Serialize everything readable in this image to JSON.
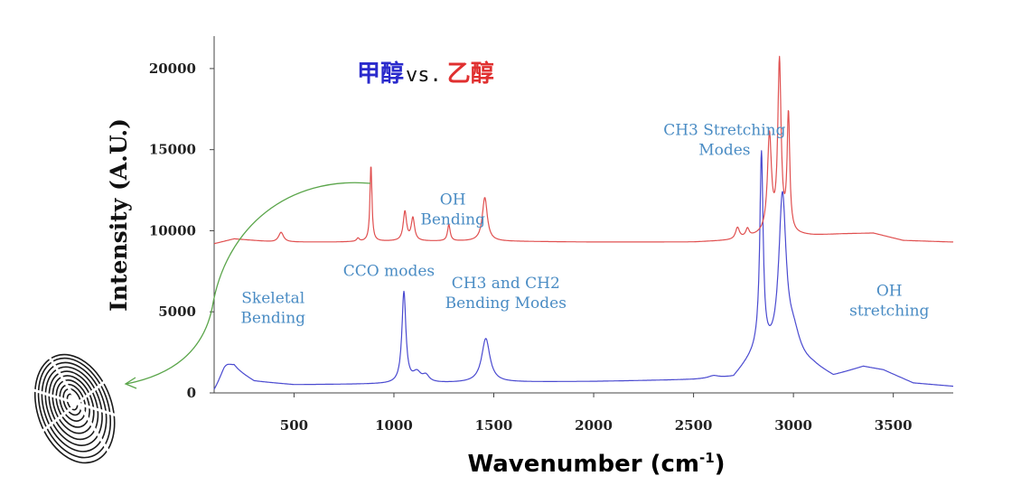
{
  "chart_data": {
    "type": "line",
    "title": "",
    "ylabel": "Intensity (A.U.)",
    "xlabel": {
      "text": "Wavenumber (cm",
      "sup": "-1",
      "close": ")"
    },
    "xlim": [
      100,
      3800
    ],
    "ylim": [
      0,
      22000
    ],
    "xticks": [
      500,
      1000,
      1500,
      2000,
      2500,
      3000,
      3500
    ],
    "yticks": [
      0,
      5000,
      10000,
      15000,
      20000
    ],
    "legend": [
      {
        "text": "甲醇",
        "color": "#2a2acc"
      },
      {
        "text": "vs.",
        "color": "#111111"
      },
      {
        "text": "乙醇",
        "color": "#e03030"
      }
    ],
    "series": [
      {
        "name": "甲醇",
        "color": "#4a4ad0",
        "baseline": [
          [
            100,
            0
          ],
          [
            150,
            900
          ],
          [
            200,
            1400
          ],
          [
            300,
            700
          ],
          [
            500,
            500
          ],
          [
            1000,
            550
          ],
          [
            1500,
            650
          ],
          [
            2000,
            700
          ],
          [
            2500,
            800
          ],
          [
            2700,
            900
          ],
          [
            2820,
            2500
          ],
          [
            3100,
            1600
          ],
          [
            3200,
            1000
          ],
          [
            3350,
            1600
          ],
          [
            3450,
            1400
          ],
          [
            3600,
            600
          ],
          [
            3800,
            400
          ]
        ],
        "peaks": [
          {
            "x": 160,
            "h": 700,
            "w": 40
          },
          {
            "x": 1050,
            "h": 5600,
            "w": 12
          },
          {
            "x": 1115,
            "h": 600,
            "w": 25
          },
          {
            "x": 1160,
            "h": 400,
            "w": 20
          },
          {
            "x": 1460,
            "h": 2700,
            "w": 25
          },
          {
            "x": 2600,
            "h": 150,
            "w": 30
          },
          {
            "x": 2840,
            "h": 12000,
            "w": 10
          },
          {
            "x": 2945,
            "h": 9700,
            "w": 22
          },
          {
            "x": 3000,
            "h": 1500,
            "w": 40
          }
        ]
      },
      {
        "name": "乙醇",
        "color": "#e05050",
        "baseline": [
          [
            100,
            9200
          ],
          [
            200,
            9500
          ],
          [
            400,
            9300
          ],
          [
            700,
            9300
          ],
          [
            1000,
            9350
          ],
          [
            1500,
            9350
          ],
          [
            2000,
            9300
          ],
          [
            2500,
            9300
          ],
          [
            2700,
            9400
          ],
          [
            2850,
            9700
          ],
          [
            3100,
            9700
          ],
          [
            3250,
            9800
          ],
          [
            3400,
            9850
          ],
          [
            3550,
            9400
          ],
          [
            3800,
            9300
          ]
        ],
        "peaks": [
          {
            "x": 435,
            "h": 600,
            "w": 15
          },
          {
            "x": 820,
            "h": 200,
            "w": 8
          },
          {
            "x": 885,
            "h": 4700,
            "w": 6
          },
          {
            "x": 1055,
            "h": 1800,
            "w": 10
          },
          {
            "x": 1095,
            "h": 1400,
            "w": 10
          },
          {
            "x": 1275,
            "h": 1000,
            "w": 8
          },
          {
            "x": 1455,
            "h": 2700,
            "w": 15
          },
          {
            "x": 2720,
            "h": 700,
            "w": 12
          },
          {
            "x": 2770,
            "h": 500,
            "w": 10
          },
          {
            "x": 2880,
            "h": 6000,
            "w": 12
          },
          {
            "x": 2930,
            "h": 10500,
            "w": 10
          },
          {
            "x": 2975,
            "h": 7200,
            "w": 8
          }
        ]
      }
    ],
    "annotations": [
      {
        "lines": [
          "CH3 Stretching",
          "Modes"
        ],
        "x": 2655,
        "y": 15900
      },
      {
        "lines": [
          "OH",
          "Bending"
        ],
        "x": 1295,
        "y": 11600
      },
      {
        "lines": [
          "CCO modes"
        ],
        "x": 975,
        "y": 7200
      },
      {
        "lines": [
          "CH3 and CH2",
          "Bending Modes"
        ],
        "x": 1560,
        "y": 6450
      },
      {
        "lines": [
          "Skeletal",
          "Bending"
        ],
        "x": 395,
        "y": 5550
      },
      {
        "lines": [
          "OH",
          "stretching"
        ],
        "x": 3480,
        "y": 6000
      }
    ]
  }
}
